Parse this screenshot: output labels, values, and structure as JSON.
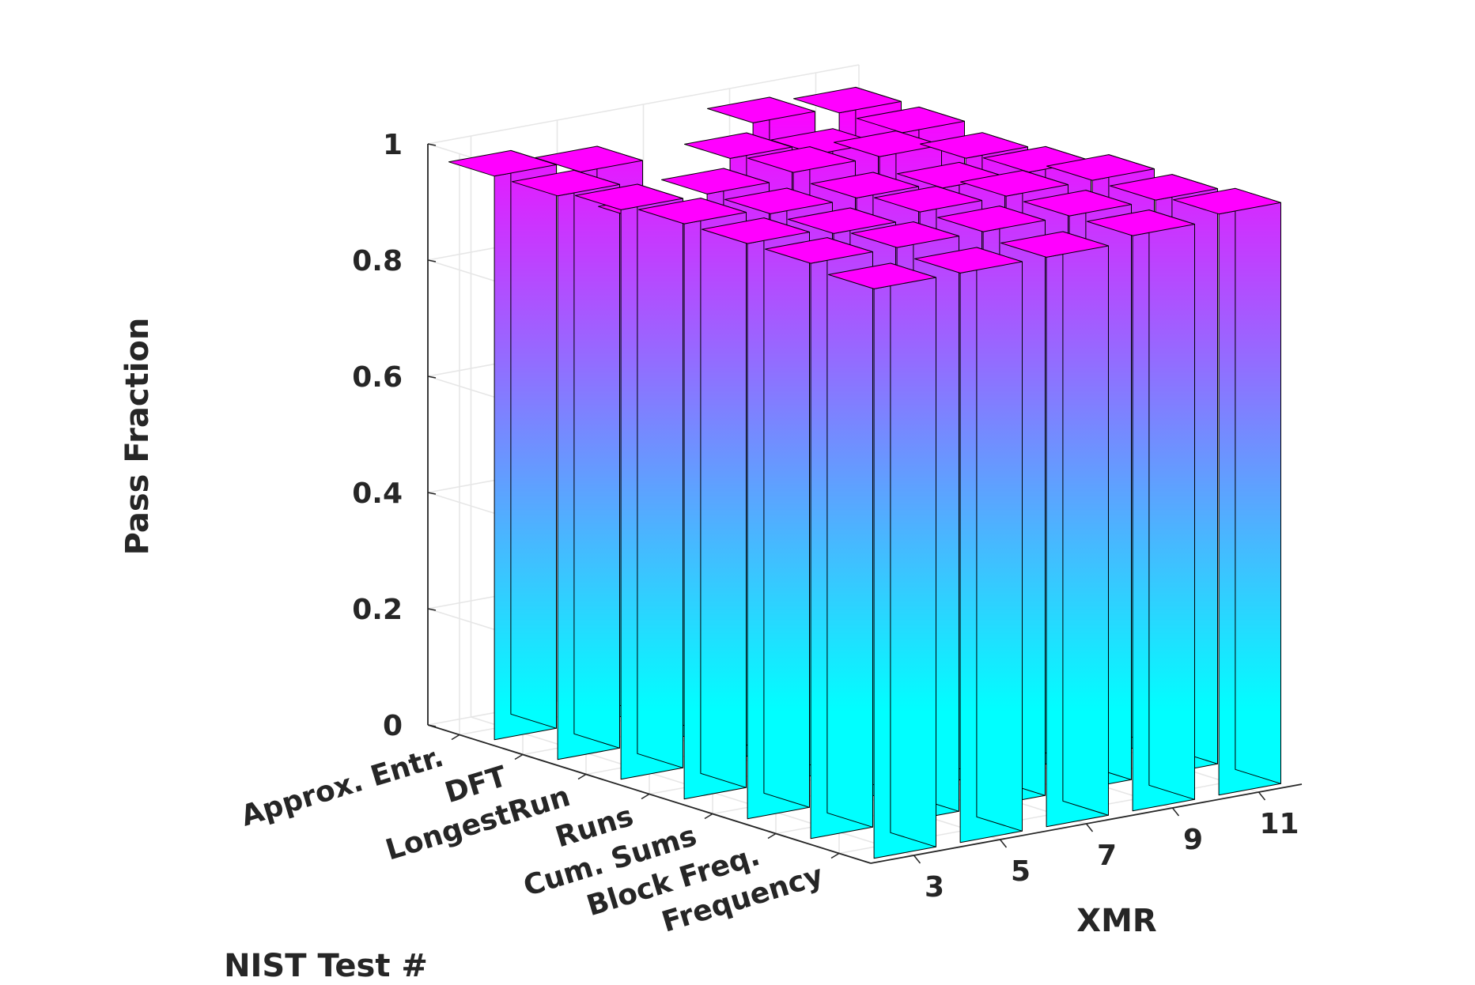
{
  "chart_data": {
    "type": "bar3d",
    "title": "",
    "xlabel": "XMR",
    "ylabel": "NIST Test #",
    "zlabel": "Pass Fraction",
    "x_categories": [
      "3",
      "5",
      "7",
      "9",
      "11"
    ],
    "y_categories": [
      "Frequency",
      "Block Freq.",
      "Cum. Sums",
      "Runs",
      "LongestRun",
      "DFT",
      "Approx. Entr."
    ],
    "z_ticks": [
      "0",
      "0.2",
      "0.4",
      "0.6",
      "0.8",
      "1"
    ],
    "zlim": [
      0,
      1
    ],
    "grid": true,
    "colormap": [
      "#00ffff",
      "#ff00ff"
    ],
    "series": [
      {
        "name": "Frequency",
        "values": [
          0.98,
          0.98,
          0.98,
          0.99,
          1.0
        ]
      },
      {
        "name": "Block Freq.",
        "values": [
          0.99,
          0.99,
          0.99,
          0.99,
          0.99
        ]
      },
      {
        "name": "Cum. Sums",
        "values": [
          0.99,
          0.98,
          0.99,
          0.99,
          0.99
        ]
      },
      {
        "name": "Runs",
        "values": [
          0.99,
          0.98,
          0.98,
          0.97,
          0.97
        ]
      },
      {
        "name": "LongestRun",
        "values": [
          0.98,
          0.98,
          0.99,
          0.99,
          0.96
        ]
      },
      {
        "name": "DFT",
        "values": [
          0.97,
          0.9,
          0.98,
          0.96,
          0.97
        ]
      },
      {
        "name": "Approx. Entr.",
        "values": [
          0.97,
          0.95,
          0.64,
          0.98,
          0.97
        ]
      }
    ]
  }
}
